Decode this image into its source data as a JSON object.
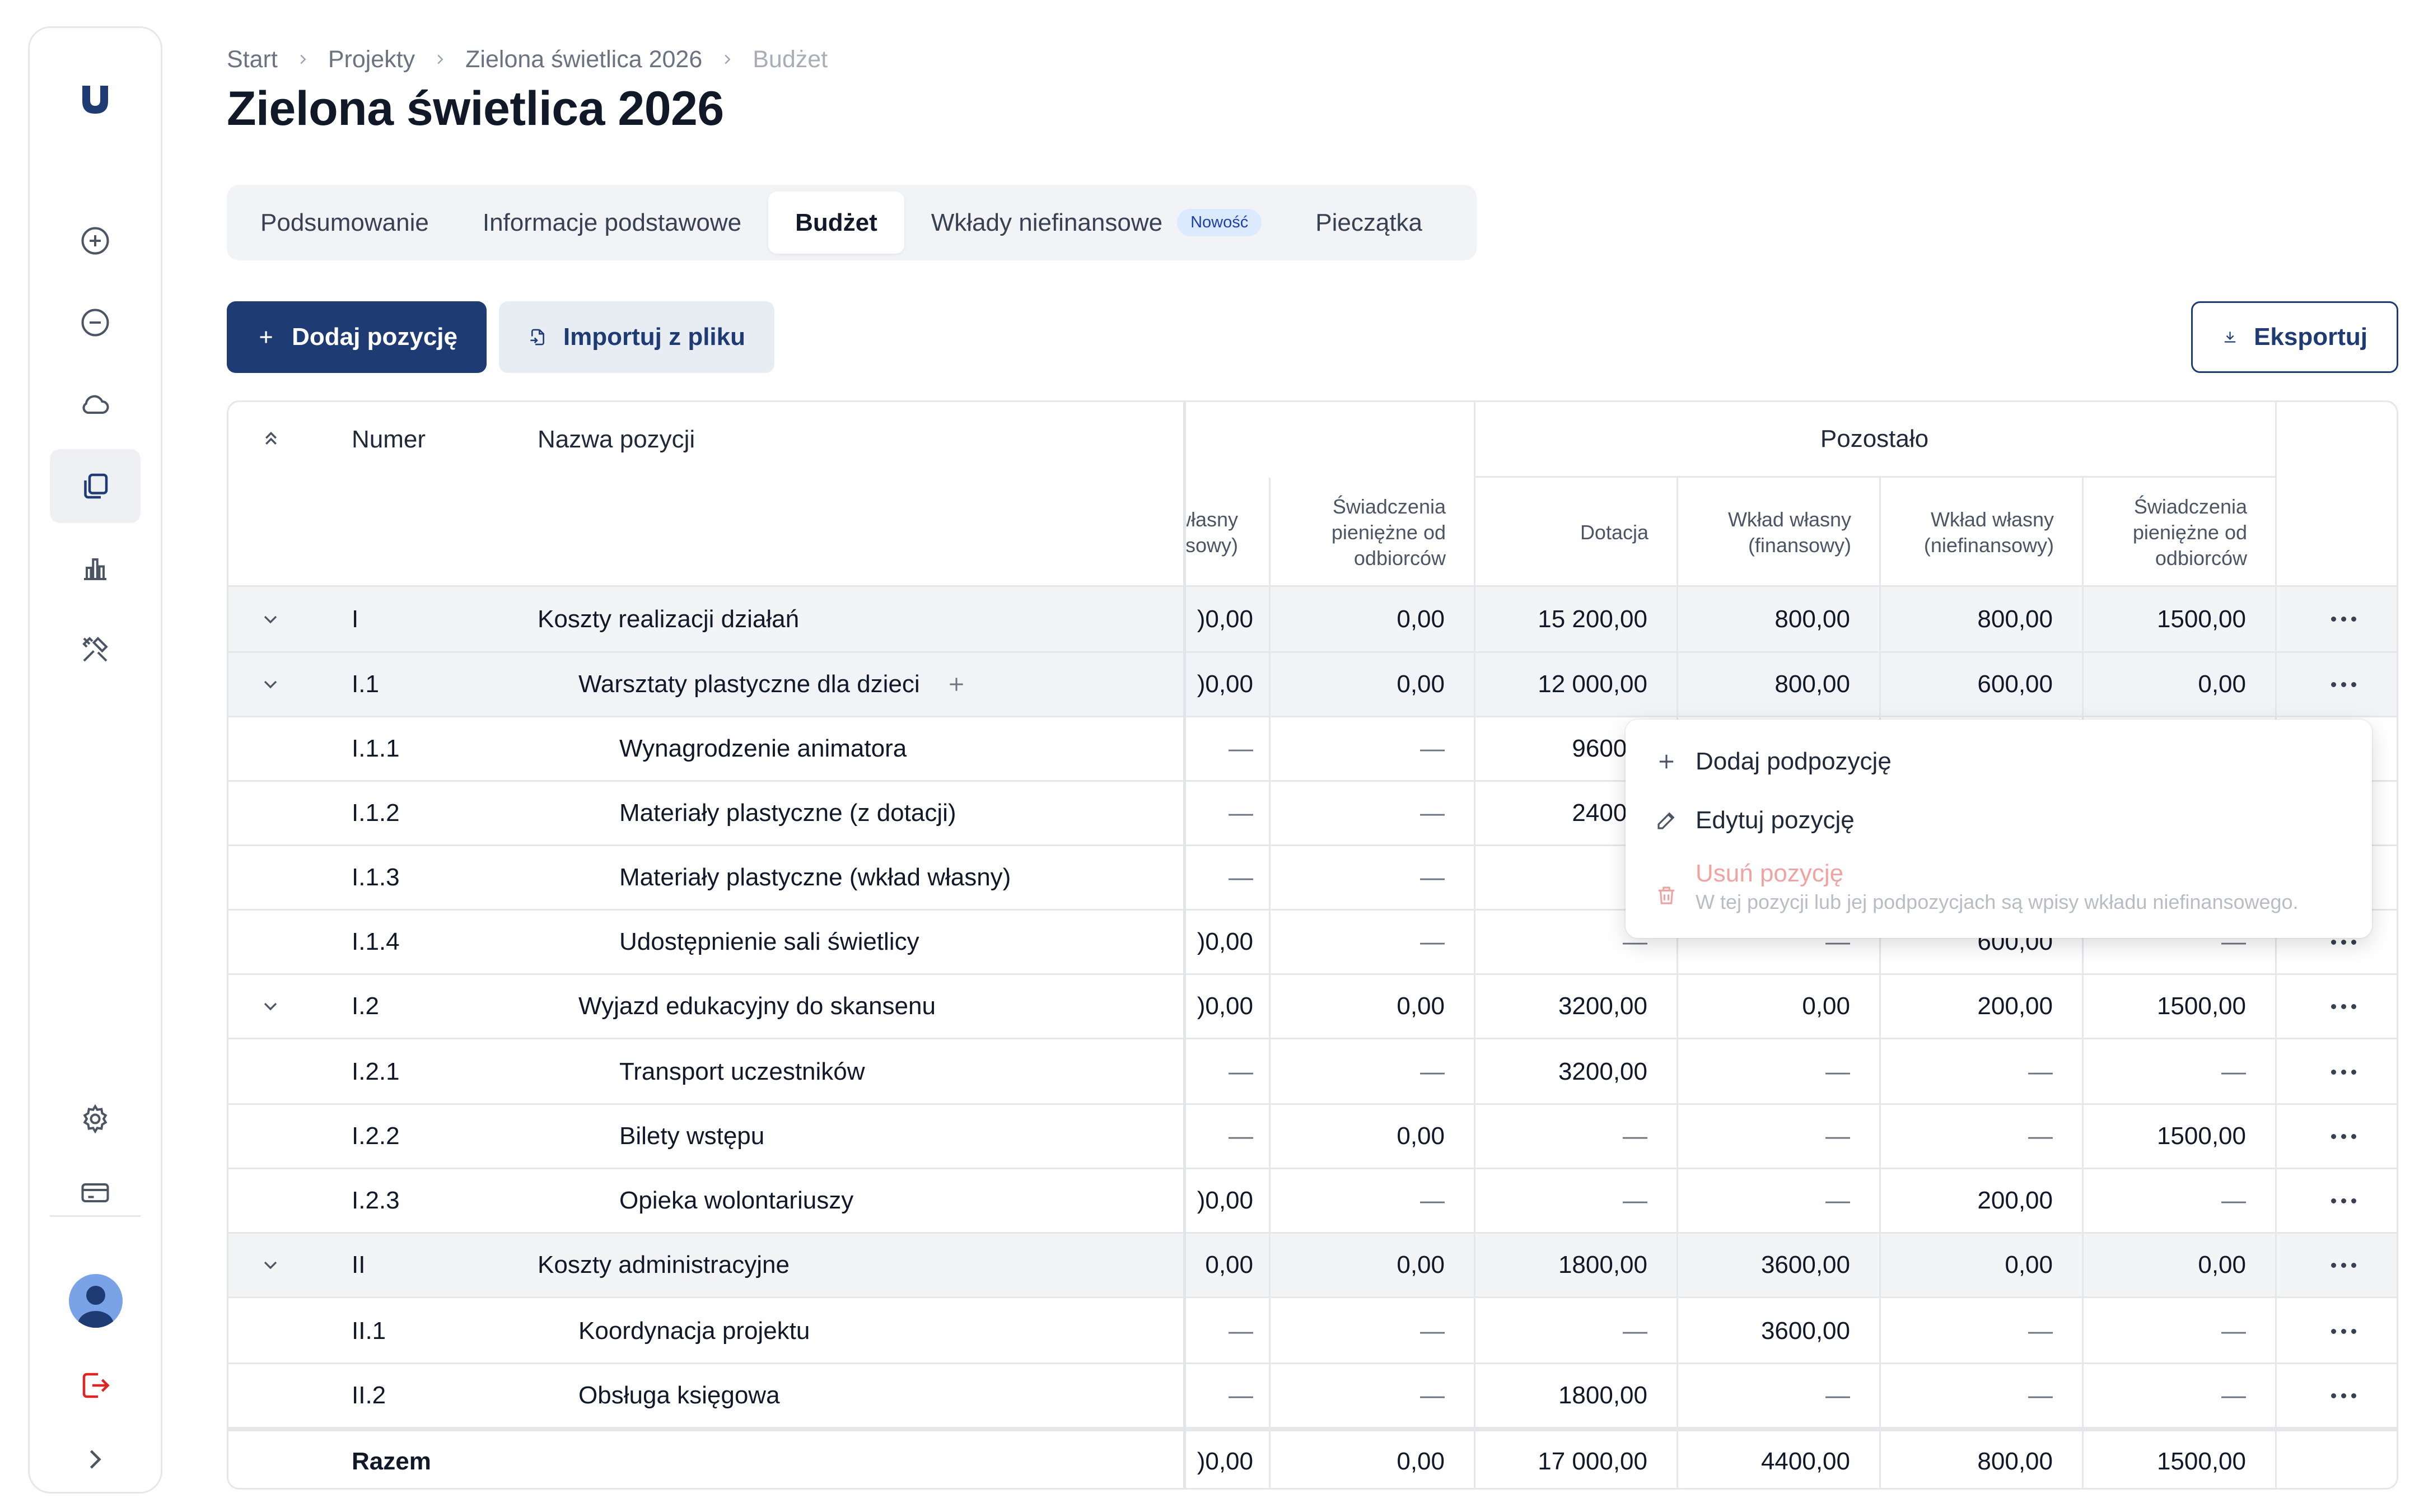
{
  "breadcrumb": {
    "items": [
      "Start",
      "Projekty",
      "Zielona świetlica 2026",
      "Budżet"
    ]
  },
  "page": {
    "title": "Zielona świetlica 2026"
  },
  "tabs": [
    {
      "label": "Podsumowanie",
      "active": false
    },
    {
      "label": "Informacje podstawowe",
      "active": false
    },
    {
      "label": "Budżet",
      "active": true
    },
    {
      "label": "Wkłady niefinansowe",
      "active": false,
      "badge": "Nowość"
    },
    {
      "label": "Pieczątka",
      "active": false
    }
  ],
  "toolbar": {
    "add_label": "Dodaj pozycję",
    "import_label": "Importuj z pliku",
    "export_label": "Eksportuj"
  },
  "table": {
    "headers": {
      "number": "Numer",
      "name": "Nazwa pozycji",
      "group_remaining": "Pozostało",
      "partial_own": "własny\nsowy)",
      "benefits_left": "Świadczenia\npieniężne od\nodbiorców",
      "grant": "Dotacja",
      "own_fin": "Wkład własny\n(finansowy)",
      "own_nonfin": "Wkład własny\n(niefinansowy)",
      "benefits": "Świadczenia\npieniężne od\nodbiorców"
    },
    "rows": [
      {
        "type": "group",
        "expand": true,
        "number": "I",
        "name": "Koszty realizacji działań",
        "c0": ")0,00",
        "c1": "0,00",
        "c2": "15 200,00",
        "c3": "800,00",
        "c4": "800,00",
        "c5": "1500,00"
      },
      {
        "type": "sub",
        "expand": true,
        "number": "I.1",
        "name": "Warsztaty plastyczne dla dzieci",
        "c0": ")0,00",
        "c1": "0,00",
        "c2": "12 000,00",
        "c3": "800,00",
        "c4": "600,00",
        "c5": "0,00"
      },
      {
        "type": "leaf",
        "number": "I.1.1",
        "name": "Wynagrodzenie animatora",
        "c0": "—",
        "c1": "—",
        "c2": "9600,0",
        "c3": "",
        "c4": "",
        "c5": ""
      },
      {
        "type": "leaf",
        "number": "I.1.2",
        "name": "Materiały plastyczne (z dotacji)",
        "c0": "—",
        "c1": "—",
        "c2": "2400,0",
        "c3": "",
        "c4": "",
        "c5": ""
      },
      {
        "type": "leaf",
        "number": "I.1.3",
        "name": "Materiały plastyczne (wkład własny)",
        "c0": "—",
        "c1": "—",
        "c2": "",
        "c3": "",
        "c4": "",
        "c5": ""
      },
      {
        "type": "leaf",
        "number": "I.1.4",
        "name": "Udostępnienie sali świetlicy",
        "c0": ")0,00",
        "c1": "—",
        "c2": "—",
        "c3": "—",
        "c4": "600,00",
        "c5": "—"
      },
      {
        "type": "sub2",
        "expand": true,
        "number": "I.2",
        "name": "Wyjazd edukacyjny do skansenu",
        "c0": ")0,00",
        "c1": "0,00",
        "c2": "3200,00",
        "c3": "0,00",
        "c4": "200,00",
        "c5": "1500,00"
      },
      {
        "type": "leaf",
        "number": "I.2.1",
        "name": "Transport uczestników",
        "c0": "—",
        "c1": "—",
        "c2": "3200,00",
        "c3": "—",
        "c4": "—",
        "c5": "—"
      },
      {
        "type": "leaf",
        "number": "I.2.2",
        "name": "Bilety wstępu",
        "c0": "—",
        "c1": "0,00",
        "c2": "—",
        "c3": "—",
        "c4": "—",
        "c5": "1500,00"
      },
      {
        "type": "leaf",
        "number": "I.2.3",
        "name": "Opieka wolontariuszy",
        "c0": ")0,00",
        "c1": "—",
        "c2": "—",
        "c3": "—",
        "c4": "200,00",
        "c5": "—"
      },
      {
        "type": "group",
        "expand": true,
        "number": "II",
        "name": "Koszty administracyjne",
        "c0": "0,00",
        "c1": "0,00",
        "c2": "1800,00",
        "c3": "3600,00",
        "c4": "0,00",
        "c5": "0,00"
      },
      {
        "type": "sub2",
        "number": "II.1",
        "name": "Koordynacja projektu",
        "c0": "—",
        "c1": "—",
        "c2": "—",
        "c3": "3600,00",
        "c4": "—",
        "c5": "—"
      },
      {
        "type": "sub2",
        "number": "II.2",
        "name": "Obsługa księgowa",
        "c0": "—",
        "c1": "—",
        "c2": "1800,00",
        "c3": "—",
        "c4": "—",
        "c5": "—"
      }
    ],
    "total": {
      "number": "Razem",
      "c0": ")0,00",
      "c1": "0,00",
      "c2": "17 000,00",
      "c3": "4400,00",
      "c4": "800,00",
      "c5": "1500,00"
    }
  },
  "menu": {
    "add_sub": "Dodaj podpozycję",
    "edit": "Edytuj pozycję",
    "delete": "Usuń pozycję",
    "delete_hint": "W tej pozycji lub jej podpozycjach są wpisy wkładu niefinansowego."
  },
  "colors": {
    "primary": "#1f3b73",
    "danger": "#e11d48",
    "badge_bg": "#dbeafe"
  }
}
